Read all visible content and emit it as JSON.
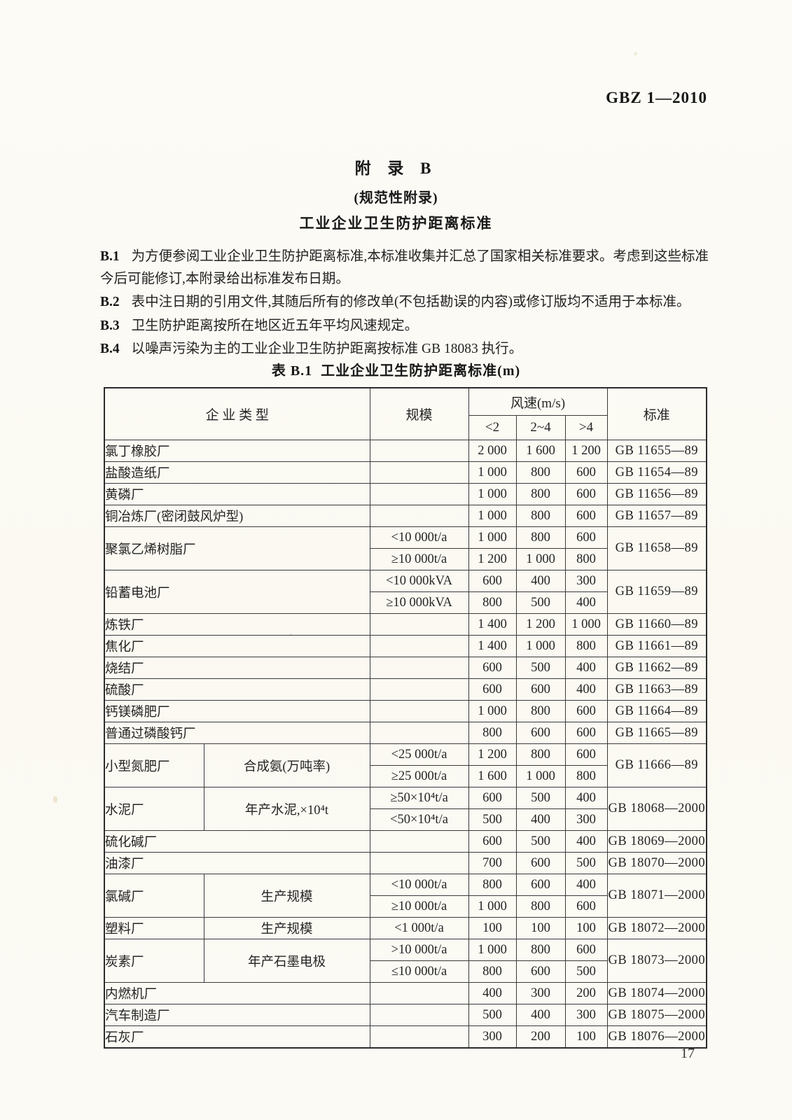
{
  "page": {
    "doc_number": "GBZ 1—2010",
    "page_number": "17"
  },
  "appendix": {
    "title": "附 录 B",
    "subtitle": "(规范性附录)",
    "heading": "工业企业卫生防护距离标准"
  },
  "clauses": [
    {
      "label": "B.1",
      "text": "为方便参阅工业企业卫生防护距离标准,本标准收集并汇总了国家相关标准要求。考虑到这些标准今后可能修订,本附录给出标准发布日期。"
    },
    {
      "label": "B.2",
      "text": "表中注日期的引用文件,其随后所有的修改单(不包括勘误的内容)或修订版均不适用于本标准。"
    },
    {
      "label": "B.3",
      "text": "卫生防护距离按所在地区近五年平均风速规定。"
    },
    {
      "label": "B.4",
      "text": "以噪声污染为主的工业企业卫生防护距离按标准 GB 18083 执行。"
    }
  ],
  "table": {
    "caption": "表 B.1  工业企业卫生防护距离标准(m)",
    "headers": {
      "enterprise": "企 业 类 型",
      "scale": "规模",
      "wind_speed": "风速(m/s)",
      "wind_cols": [
        "<2",
        "2~4",
        ">4"
      ],
      "standard": "标准"
    },
    "rows": [
      {
        "enterprise": "氯丁橡胶厂",
        "standard": "GB 11655—89",
        "subrows": [
          {
            "scale": "",
            "values": [
              "2 000",
              "1 600",
              "1 200"
            ]
          }
        ]
      },
      {
        "enterprise": "盐酸造纸厂",
        "standard": "GB 11654—89",
        "subrows": [
          {
            "scale": "",
            "values": [
              "1 000",
              "800",
              "600"
            ]
          }
        ]
      },
      {
        "enterprise": "黄磷厂",
        "standard": "GB 11656—89",
        "subrows": [
          {
            "scale": "",
            "values": [
              "1 000",
              "800",
              "600"
            ]
          }
        ]
      },
      {
        "enterprise": "铜冶炼厂(密闭鼓风炉型)",
        "standard": "GB 11657—89",
        "subrows": [
          {
            "scale": "",
            "values": [
              "1 000",
              "800",
              "600"
            ]
          }
        ]
      },
      {
        "enterprise": "聚氯乙烯树脂厂",
        "standard": "GB 11658—89",
        "subrows": [
          {
            "scale": "<10 000t/a",
            "values": [
              "1 000",
              "800",
              "600"
            ]
          },
          {
            "scale": "≥10 000t/a",
            "values": [
              "1 200",
              "1 000",
              "800"
            ]
          }
        ]
      },
      {
        "enterprise": "铅蓄电池厂",
        "standard": "GB 11659—89",
        "subrows": [
          {
            "scale": "<10 000kVA",
            "values": [
              "600",
              "400",
              "300"
            ]
          },
          {
            "scale": "≥10 000kVA",
            "values": [
              "800",
              "500",
              "400"
            ]
          }
        ]
      },
      {
        "enterprise": "炼铁厂",
        "standard": "GB 11660—89",
        "subrows": [
          {
            "scale": "",
            "values": [
              "1 400",
              "1 200",
              "1 000"
            ]
          }
        ]
      },
      {
        "enterprise": "焦化厂",
        "standard": "GB 11661—89",
        "subrows": [
          {
            "scale": "",
            "values": [
              "1 400",
              "1 000",
              "800"
            ]
          }
        ]
      },
      {
        "enterprise": "烧结厂",
        "standard": "GB 11662—89",
        "subrows": [
          {
            "scale": "",
            "values": [
              "600",
              "500",
              "400"
            ]
          }
        ]
      },
      {
        "enterprise": "硫酸厂",
        "standard": "GB 11663—89",
        "subrows": [
          {
            "scale": "",
            "values": [
              "600",
              "600",
              "400"
            ]
          }
        ]
      },
      {
        "enterprise": "钙镁磷肥厂",
        "standard": "GB 11664—89",
        "subrows": [
          {
            "scale": "",
            "values": [
              "1 000",
              "800",
              "600"
            ]
          }
        ]
      },
      {
        "enterprise": "普通过磷酸钙厂",
        "standard": "GB 11665—89",
        "subrows": [
          {
            "scale": "",
            "values": [
              "800",
              "600",
              "600"
            ]
          }
        ]
      },
      {
        "enterprise": "小型氮肥厂",
        "enterprise_sub": "合成氨(万吨率)",
        "standard": "GB 11666—89",
        "subrows": [
          {
            "scale": "<25 000t/a",
            "values": [
              "1 200",
              "800",
              "600"
            ]
          },
          {
            "scale": "≥25 000t/a",
            "values": [
              "1 600",
              "1 000",
              "800"
            ]
          }
        ]
      },
      {
        "enterprise": "水泥厂",
        "enterprise_sub": "年产水泥,×10⁴t",
        "standard": "GB 18068—2000",
        "subrows": [
          {
            "scale": "≥50×10⁴t/a",
            "values": [
              "600",
              "500",
              "400"
            ]
          },
          {
            "scale": "<50×10⁴t/a",
            "values": [
              "500",
              "400",
              "300"
            ]
          }
        ]
      },
      {
        "enterprise": "硫化碱厂",
        "standard": "GB 18069—2000",
        "subrows": [
          {
            "scale": "",
            "values": [
              "600",
              "500",
              "400"
            ]
          }
        ]
      },
      {
        "enterprise": "油漆厂",
        "standard": "GB 18070—2000",
        "subrows": [
          {
            "scale": "",
            "values": [
              "700",
              "600",
              "500"
            ]
          }
        ]
      },
      {
        "enterprise": "氯碱厂",
        "enterprise_sub": "生产规模",
        "standard": "GB 18071—2000",
        "subrows": [
          {
            "scale": "<10 000t/a",
            "values": [
              "800",
              "600",
              "400"
            ]
          },
          {
            "scale": "≥10 000t/a",
            "values": [
              "1 000",
              "800",
              "600"
            ]
          }
        ]
      },
      {
        "enterprise": "塑料厂",
        "enterprise_sub": "生产规模",
        "standard": "GB 18072—2000",
        "subrows": [
          {
            "scale": "<1 000t/a",
            "values": [
              "100",
              "100",
              "100"
            ]
          }
        ]
      },
      {
        "enterprise": "炭素厂",
        "enterprise_sub": "年产石墨电极",
        "standard": "GB 18073—2000",
        "subrows": [
          {
            "scale": ">10 000t/a",
            "values": [
              "1 000",
              "800",
              "600"
            ]
          },
          {
            "scale": "≤10 000t/a",
            "values": [
              "800",
              "600",
              "500"
            ]
          }
        ]
      },
      {
        "enterprise": "内燃机厂",
        "standard": "GB 18074—2000",
        "subrows": [
          {
            "scale": "",
            "values": [
              "400",
              "300",
              "200"
            ]
          }
        ]
      },
      {
        "enterprise": "汽车制造厂",
        "standard": "GB 18075—2000",
        "subrows": [
          {
            "scale": "",
            "values": [
              "500",
              "400",
              "300"
            ]
          }
        ]
      },
      {
        "enterprise": "石灰厂",
        "standard": "GB 18076—2000",
        "subrows": [
          {
            "scale": "",
            "values": [
              "300",
              "200",
              "100"
            ]
          }
        ]
      }
    ]
  }
}
